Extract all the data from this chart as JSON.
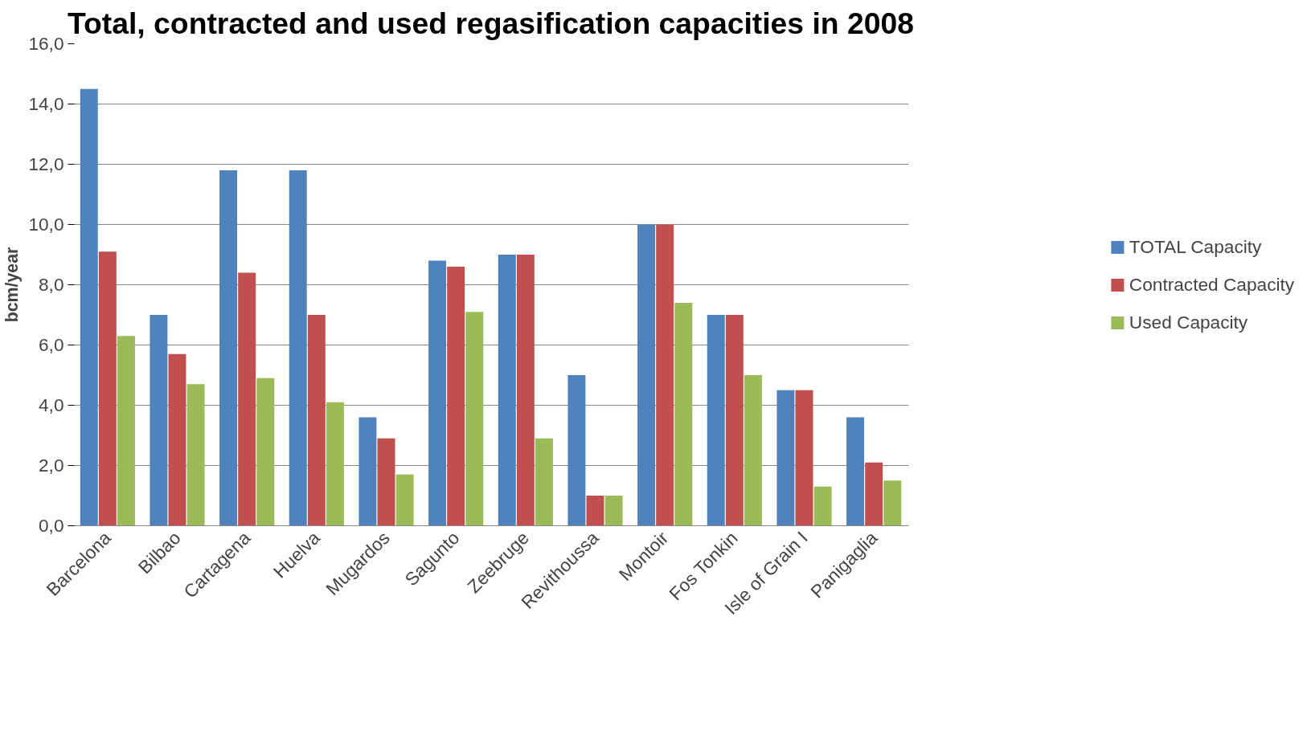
{
  "chart_data": {
    "type": "bar",
    "title": "Total, contracted and used regasification capacities in 2008",
    "ylabel": "bcm/year",
    "categories": [
      "Barcelona",
      "Bilbao",
      "Cartagena",
      "Huelva",
      "Mugardos",
      "Sagunto",
      "Zeebruge",
      "Revithoussa",
      "Montoir",
      "Fos Tonkin",
      "Isle of Grain I",
      "Panigaglia"
    ],
    "series": [
      {
        "name": "TOTAL Capacity",
        "color": "#4f81bd",
        "values": [
          14.5,
          7.0,
          11.8,
          11.8,
          3.6,
          8.8,
          9.0,
          5.0,
          10.0,
          7.0,
          4.5,
          3.6
        ]
      },
      {
        "name": "Contracted Capacity",
        "color": "#c0504d",
        "values": [
          9.1,
          5.7,
          8.4,
          7.0,
          2.9,
          8.6,
          9.0,
          1.0,
          10.0,
          7.0,
          4.5,
          2.1
        ]
      },
      {
        "name": "Used Capacity",
        "color": "#9bbb59",
        "values": [
          6.3,
          4.7,
          4.9,
          4.1,
          1.7,
          7.1,
          2.9,
          1.0,
          7.4,
          5.0,
          1.3,
          1.5
        ]
      }
    ],
    "ylim": [
      0,
      16
    ],
    "yticks": [
      {
        "value": 0,
        "label": "0,0"
      },
      {
        "value": 2,
        "label": "2,0"
      },
      {
        "value": 4,
        "label": "4,0"
      },
      {
        "value": 6,
        "label": "6,0"
      },
      {
        "value": 8,
        "label": "8,0"
      },
      {
        "value": 10,
        "label": "10,0"
      },
      {
        "value": 12,
        "label": "12,0"
      },
      {
        "value": 14,
        "label": "14,0"
      },
      {
        "value": 16,
        "label": "16,0"
      }
    ],
    "grid": "y",
    "legend": "right"
  }
}
